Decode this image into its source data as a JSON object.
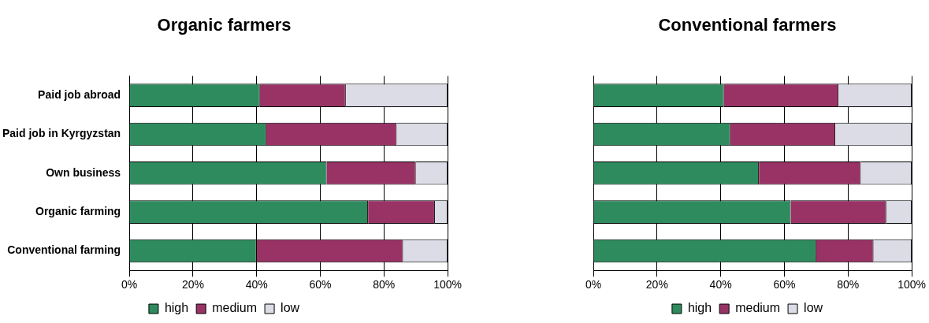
{
  "chart_data": [
    {
      "type": "bar",
      "title": "Organic farmers",
      "orientation": "horizontal",
      "stacked": true,
      "categories": [
        "Paid job abroad",
        "Paid job in Kyrgyzstan",
        "Own business",
        "Organic farming",
        "Conventional farming"
      ],
      "series": [
        {
          "name": "high",
          "color": "#2e8b5e",
          "values": [
            41,
            43,
            62,
            75,
            40
          ]
        },
        {
          "name": "medium",
          "color": "#993366",
          "values": [
            27,
            41,
            28,
            21,
            46
          ]
        },
        {
          "name": "low",
          "color": "#dcdce6",
          "values": [
            32,
            16,
            10,
            4,
            14
          ]
        }
      ],
      "xlim": [
        0,
        100
      ],
      "xticks": [
        {
          "value": 0,
          "label": "0%"
        },
        {
          "value": 20,
          "label": "20%"
        },
        {
          "value": 40,
          "label": "40%"
        },
        {
          "value": 60,
          "label": "60%"
        },
        {
          "value": 80,
          "label": "80%"
        },
        {
          "value": 100,
          "label": "100%"
        }
      ],
      "grid": "x",
      "legend": "bottom"
    },
    {
      "type": "bar",
      "title": "Conventional farmers",
      "orientation": "horizontal",
      "stacked": true,
      "categories": [
        null,
        null,
        null,
        null,
        null
      ],
      "series": [
        {
          "name": "high",
          "color": "#2e8b5e",
          "values": [
            41,
            43,
            52,
            62,
            70
          ]
        },
        {
          "name": "medium",
          "color": "#993366",
          "values": [
            36,
            33,
            32,
            30,
            18
          ]
        },
        {
          "name": "low",
          "color": "#dcdce6",
          "values": [
            23,
            24,
            16,
            8,
            12
          ]
        }
      ],
      "xlim": [
        0,
        100
      ],
      "xticks": [
        {
          "value": 0,
          "label": "0%"
        },
        {
          "value": 20,
          "label": "20%"
        },
        {
          "value": 40,
          "label": "40%"
        },
        {
          "value": 60,
          "label": "60%"
        },
        {
          "value": 80,
          "label": "80%"
        },
        {
          "value": 100,
          "label": "100%"
        }
      ],
      "grid": "x",
      "legend": "bottom"
    }
  ]
}
